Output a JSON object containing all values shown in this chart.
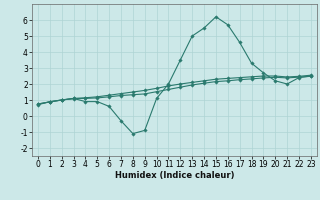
{
  "xlabel": "Humidex (Indice chaleur)",
  "background_color": "#cce8e8",
  "grid_color": "#afd4d4",
  "line_color": "#2a7a6e",
  "x_data": [
    0,
    1,
    2,
    3,
    4,
    5,
    6,
    7,
    8,
    9,
    10,
    11,
    12,
    13,
    14,
    15,
    16,
    17,
    18,
    19,
    20,
    21,
    22,
    23
  ],
  "y_main": [
    0.7,
    0.9,
    1.0,
    1.1,
    0.9,
    0.9,
    0.6,
    -0.3,
    -1.1,
    -0.9,
    1.1,
    2.0,
    3.5,
    5.0,
    5.5,
    6.2,
    5.7,
    4.6,
    3.3,
    2.7,
    2.2,
    2.0,
    2.4,
    2.5
  ],
  "y_line1": [
    0.75,
    0.88,
    1.0,
    1.08,
    1.1,
    1.13,
    1.2,
    1.28,
    1.33,
    1.38,
    1.52,
    1.66,
    1.8,
    1.94,
    2.05,
    2.15,
    2.2,
    2.27,
    2.32,
    2.38,
    2.42,
    2.38,
    2.43,
    2.48
  ],
  "y_line2": [
    0.75,
    0.88,
    1.0,
    1.1,
    1.14,
    1.2,
    1.3,
    1.4,
    1.5,
    1.6,
    1.73,
    1.88,
    2.0,
    2.1,
    2.2,
    2.3,
    2.35,
    2.4,
    2.45,
    2.5,
    2.5,
    2.44,
    2.48,
    2.55
  ],
  "ylim": [
    -2.5,
    7.0
  ],
  "xlim": [
    -0.5,
    23.5
  ],
  "yticks": [
    -2,
    -1,
    0,
    1,
    2,
    3,
    4,
    5,
    6
  ],
  "xticks": [
    0,
    1,
    2,
    3,
    4,
    5,
    6,
    7,
    8,
    9,
    10,
    11,
    12,
    13,
    14,
    15,
    16,
    17,
    18,
    19,
    20,
    21,
    22,
    23
  ],
  "marker": "D",
  "marker_size": 1.8,
  "line_width": 0.8,
  "tick_fontsize": 5.5,
  "xlabel_fontsize": 6.0
}
